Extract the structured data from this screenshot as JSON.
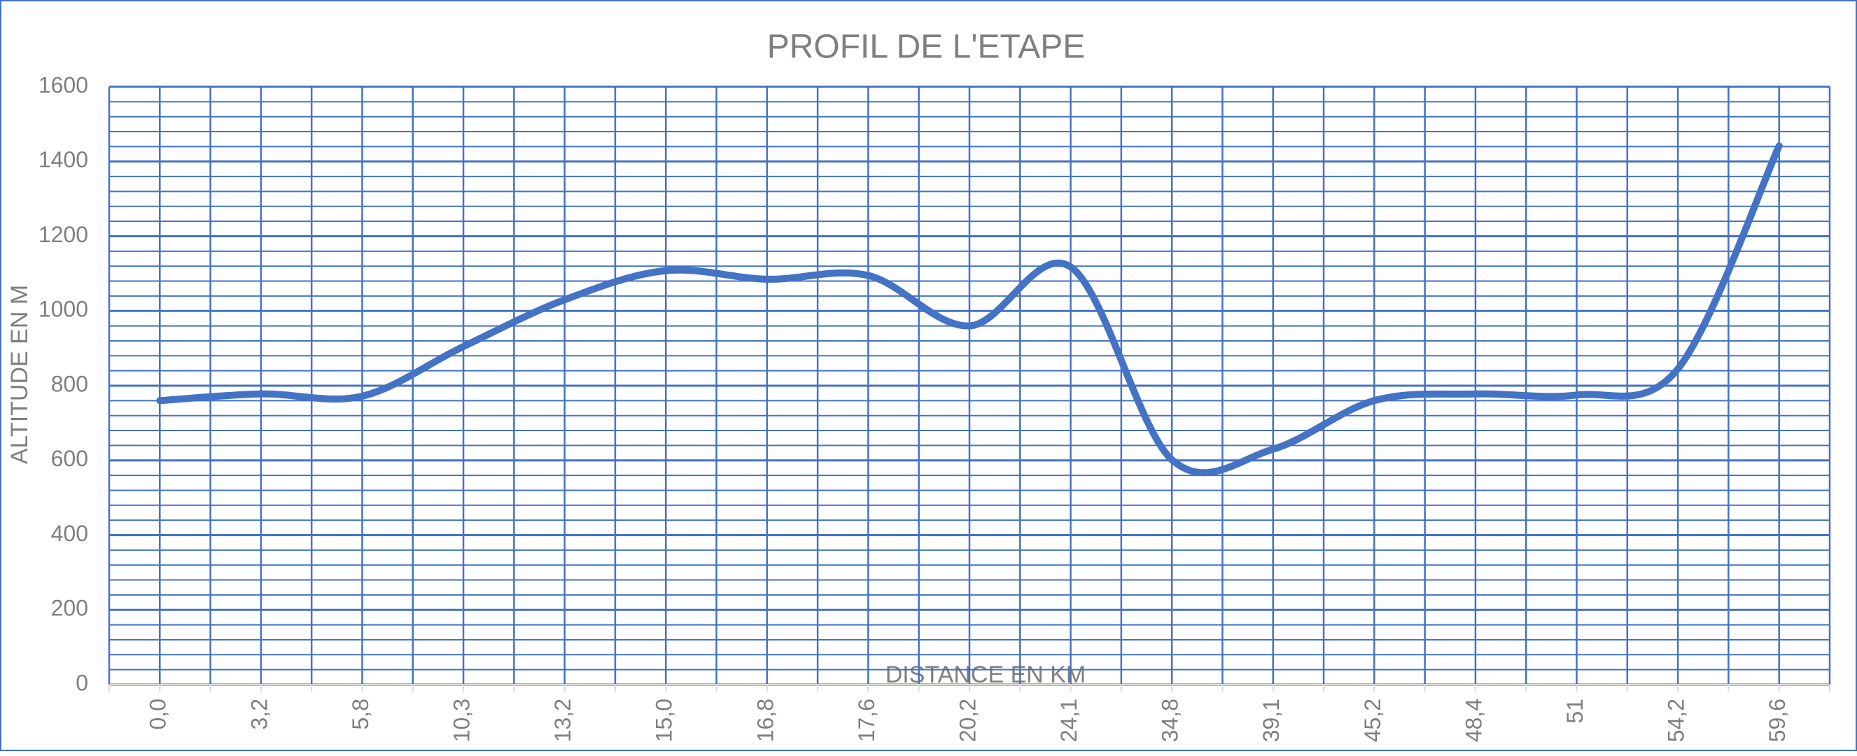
{
  "chart_data": {
    "type": "line",
    "title": "PROFIL DE L'ETAPE",
    "x_label": "DISTANCE EN KM",
    "y_label": "ALTITUDE EN M",
    "categories": [
      "0,0",
      "3,2",
      "5,8",
      "10,3",
      "13,2",
      "15,0",
      "16,8",
      "17,6",
      "20,2",
      "24,1",
      "34,8",
      "39,1",
      "45,2",
      "48,4",
      "51",
      "54,2",
      "59,6"
    ],
    "series": [
      {
        "name": "ALTITUDE",
        "color": "#4472c4",
        "values": [
          760,
          778,
          772,
          905,
          1030,
          1108,
          1085,
          1095,
          960,
          1118,
          602,
          630,
          760,
          778,
          775,
          845,
          1442
        ]
      }
    ],
    "ylim": [
      0,
      1600
    ],
    "yticks": [
      0,
      200,
      400,
      600,
      800,
      1000,
      1200,
      1400,
      1600
    ],
    "grid": true,
    "smooth": true,
    "grid_color": "#4472c4"
  }
}
